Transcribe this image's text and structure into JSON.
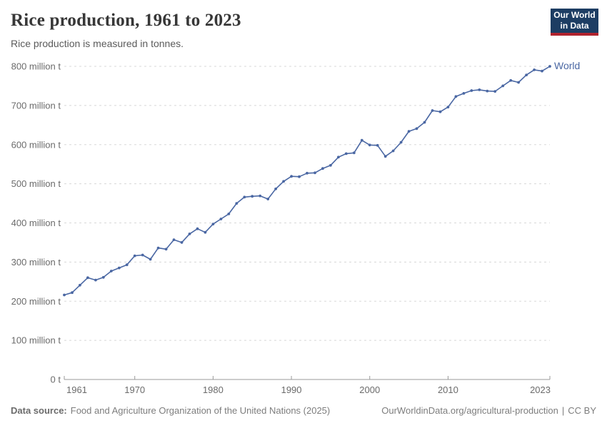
{
  "header": {
    "title": "Rice production, 1961 to 2023",
    "subtitle": "Rice production is measured in tonnes.",
    "logo": {
      "line1": "Our World",
      "line2": "in Data"
    }
  },
  "chart_data": {
    "type": "line",
    "title": "Rice production, 1961 to 2023",
    "unit": "tonnes",
    "xlabel": "",
    "ylabel": "",
    "xlim": [
      1961,
      2023
    ],
    "ylim": [
      0,
      800
    ],
    "grid": "horizontal-dashed",
    "legend_position": "end-of-line",
    "y_ticks": [
      {
        "value": 800,
        "label": "800 million t"
      },
      {
        "value": 700,
        "label": "700 million t"
      },
      {
        "value": 600,
        "label": "600 million t"
      },
      {
        "value": 500,
        "label": "500 million t"
      },
      {
        "value": 400,
        "label": "400 million t"
      },
      {
        "value": 300,
        "label": "300 million t"
      },
      {
        "value": 200,
        "label": "200 million t"
      },
      {
        "value": 100,
        "label": "100 million t"
      },
      {
        "value": 0,
        "label": "0 t"
      }
    ],
    "x_ticks": [
      {
        "year": 1961,
        "label": "1961",
        "align": "start"
      },
      {
        "year": 1970,
        "label": "1970",
        "align": "middle"
      },
      {
        "year": 1980,
        "label": "1980",
        "align": "middle"
      },
      {
        "year": 1990,
        "label": "1990",
        "align": "middle"
      },
      {
        "year": 2000,
        "label": "2000",
        "align": "middle"
      },
      {
        "year": 2010,
        "label": "2010",
        "align": "middle"
      },
      {
        "year": 2023,
        "label": "2023",
        "align": "end"
      }
    ],
    "series": [
      {
        "name": "World",
        "color": "#4a67a3",
        "years": [
          1961,
          1962,
          1963,
          1964,
          1965,
          1966,
          1967,
          1968,
          1969,
          1970,
          1971,
          1972,
          1973,
          1974,
          1975,
          1976,
          1977,
          1978,
          1979,
          1980,
          1981,
          1982,
          1983,
          1984,
          1985,
          1986,
          1987,
          1988,
          1989,
          1990,
          1991,
          1992,
          1993,
          1994,
          1995,
          1996,
          1997,
          1998,
          1999,
          2000,
          2001,
          2002,
          2003,
          2004,
          2005,
          2006,
          2007,
          2008,
          2009,
          2010,
          2011,
          2012,
          2013,
          2014,
          2015,
          2016,
          2017,
          2018,
          2019,
          2020,
          2021,
          2022,
          2023
        ],
        "values_million_t": [
          216,
          222,
          241,
          260,
          254,
          261,
          277,
          285,
          293,
          316,
          318,
          307,
          336,
          333,
          357,
          350,
          372,
          385,
          376,
          397,
          410,
          423,
          450,
          466,
          468,
          469,
          461,
          487,
          506,
          519,
          518,
          527,
          528,
          539,
          547,
          568,
          577,
          579,
          611,
          599,
          598,
          570,
          584,
          606,
          634,
          641,
          657,
          687,
          684,
          696,
          723,
          731,
          738,
          740,
          737,
          736,
          750,
          764,
          759,
          778,
          791,
          788,
          800
        ]
      }
    ]
  },
  "footer": {
    "source_label": "Data source:",
    "source": "Food and Agriculture Organization of the United Nations (2025)",
    "link": "OurWorldinData.org/agricultural-production",
    "separator": "|",
    "license": "CC BY"
  },
  "colors": {
    "series_world": "#4a67a3",
    "logo_background": "#1d3d63",
    "logo_underline": "#b0232e",
    "gridline": "#d8d8d8",
    "axis": "#9a9a9a",
    "tick_text": "#6b6b6b"
  }
}
